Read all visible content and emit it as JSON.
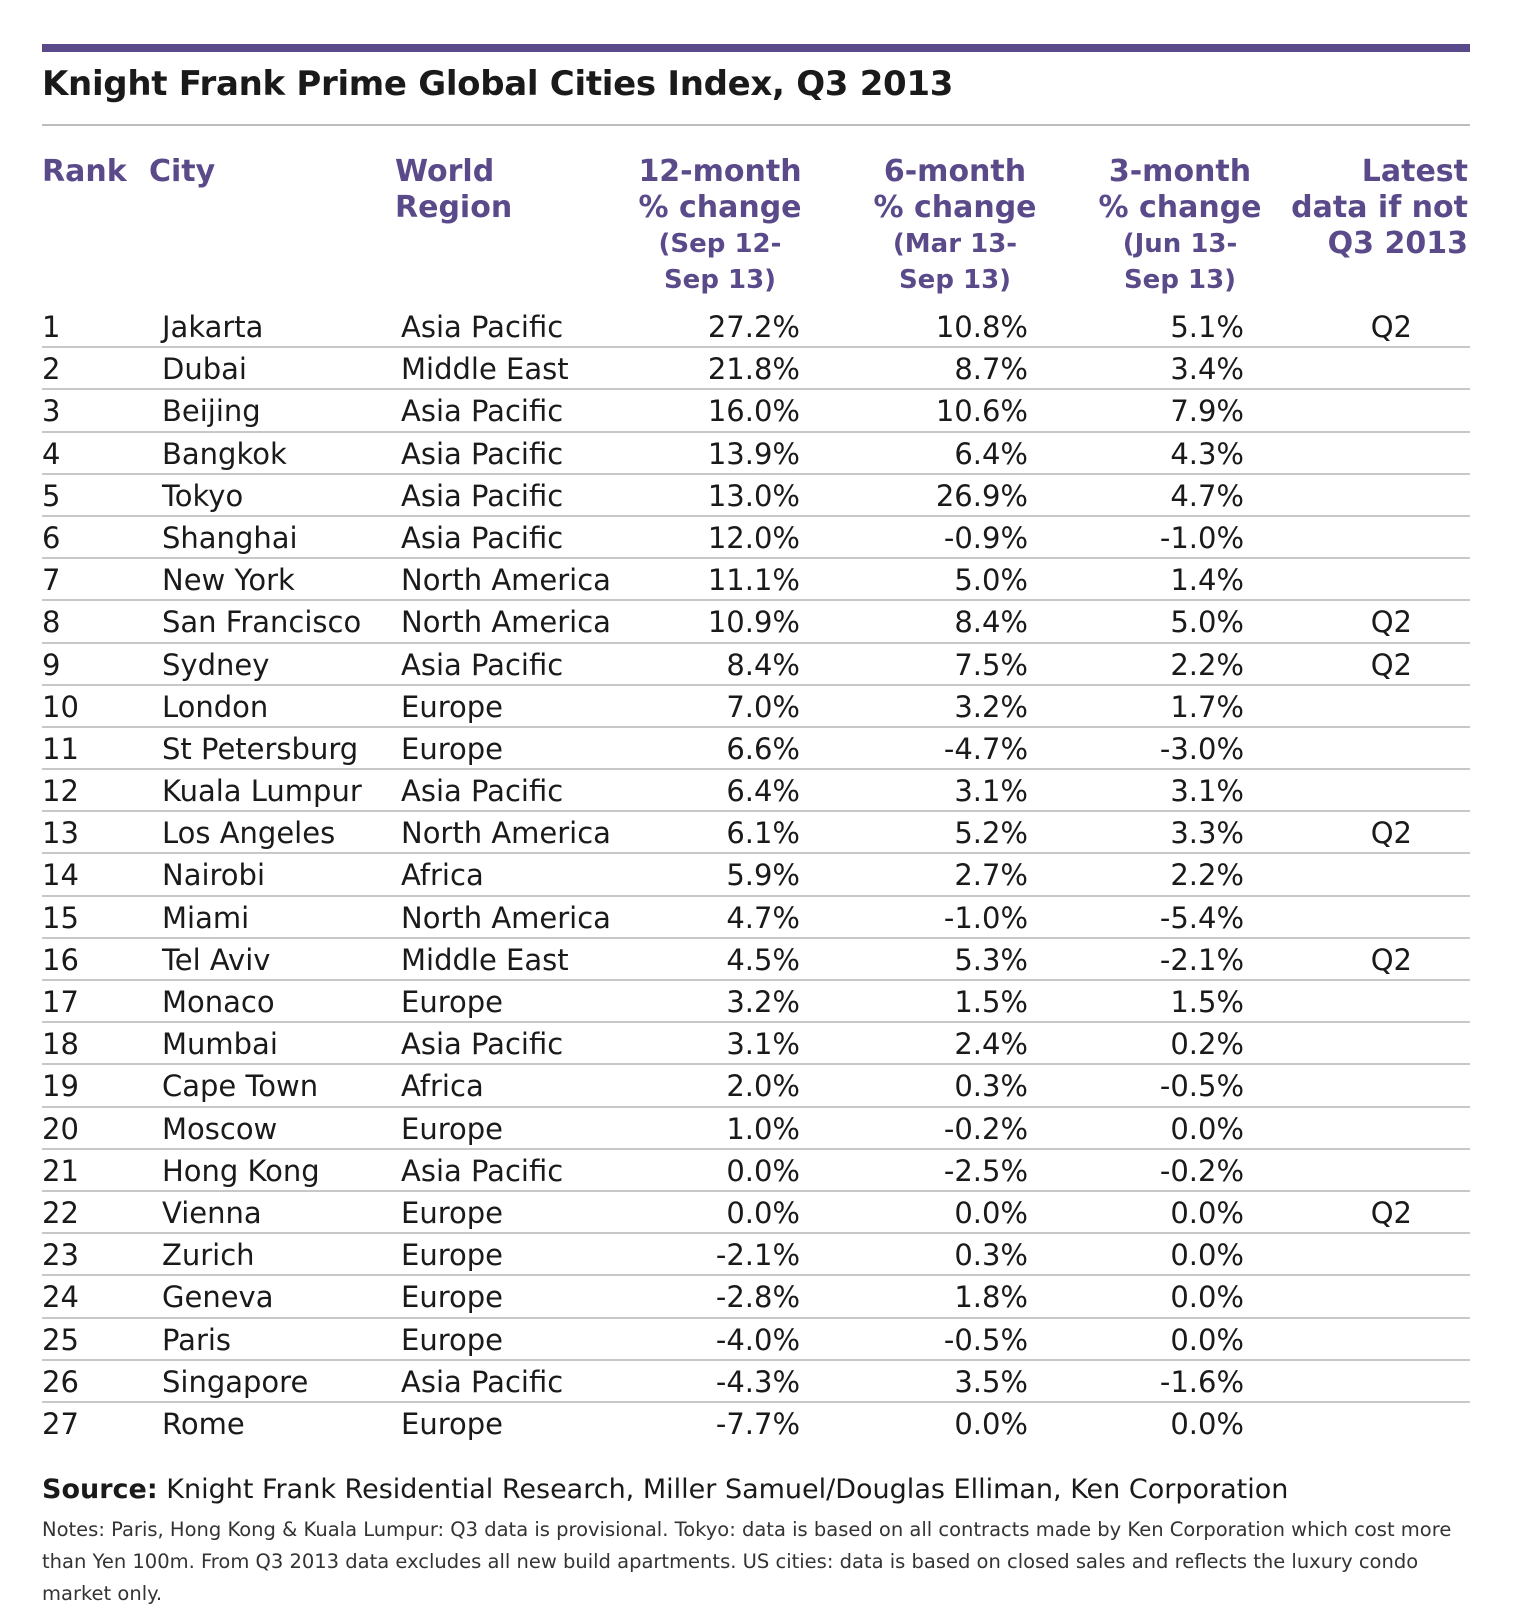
{
  "title": "Knight Frank Prime Global Cities Index, Q3 2013",
  "accent_color": "#5b4a8a",
  "headers": {
    "rank": "Rank",
    "city": "City",
    "region_line1": "World",
    "region_line2": "Region",
    "c12_line1": "12-month",
    "c12_line2": "% change",
    "c12_line3": "(Sep 12-",
    "c12_line4": "Sep 13)",
    "c6_line1": "6-month",
    "c6_line2": "% change",
    "c6_line3": "(Mar 13-",
    "c6_line4": "Sep 13)",
    "c3_line1": "3-month",
    "c3_line2": "% change",
    "c3_line3": "(Jun 13-",
    "c3_line4": "Sep 13)",
    "latest_line1": "Latest",
    "latest_line2": "data if not",
    "latest_line3": "Q3 2013"
  },
  "rows": [
    {
      "rank": "1",
      "city": "Jakarta",
      "region": "Asia Pacific",
      "c12": "27.2%",
      "c6": "10.8%",
      "c3": "5.1%",
      "latest": "Q2"
    },
    {
      "rank": "2",
      "city": "Dubai",
      "region": "Middle East",
      "c12": "21.8%",
      "c6": "8.7%",
      "c3": "3.4%",
      "latest": ""
    },
    {
      "rank": "3",
      "city": "Beijing",
      "region": "Asia Pacific",
      "c12": "16.0%",
      "c6": "10.6%",
      "c3": "7.9%",
      "latest": ""
    },
    {
      "rank": "4",
      "city": "Bangkok",
      "region": "Asia Pacific",
      "c12": "13.9%",
      "c6": "6.4%",
      "c3": "4.3%",
      "latest": ""
    },
    {
      "rank": "5",
      "city": "Tokyo",
      "region": "Asia Pacific",
      "c12": "13.0%",
      "c6": "26.9%",
      "c3": "4.7%",
      "latest": ""
    },
    {
      "rank": "6",
      "city": "Shanghai",
      "region": "Asia Pacific",
      "c12": "12.0%",
      "c6": "-0.9%",
      "c3": "-1.0%",
      "latest": ""
    },
    {
      "rank": "7",
      "city": "New York",
      "region": "North America",
      "c12": "11.1%",
      "c6": "5.0%",
      "c3": "1.4%",
      "latest": ""
    },
    {
      "rank": "8",
      "city": "San Francisco",
      "region": "North America",
      "c12": "10.9%",
      "c6": "8.4%",
      "c3": "5.0%",
      "latest": "Q2"
    },
    {
      "rank": "9",
      "city": "Sydney",
      "region": "Asia Pacific",
      "c12": "8.4%",
      "c6": "7.5%",
      "c3": "2.2%",
      "latest": "Q2"
    },
    {
      "rank": "10",
      "city": "London",
      "region": "Europe",
      "c12": "7.0%",
      "c6": "3.2%",
      "c3": "1.7%",
      "latest": ""
    },
    {
      "rank": "11",
      "city": "St Petersburg",
      "region": "Europe",
      "c12": "6.6%",
      "c6": "-4.7%",
      "c3": "-3.0%",
      "latest": ""
    },
    {
      "rank": "12",
      "city": "Kuala Lumpur",
      "region": "Asia Pacific",
      "c12": "6.4%",
      "c6": "3.1%",
      "c3": "3.1%",
      "latest": ""
    },
    {
      "rank": "13",
      "city": "Los Angeles",
      "region": "North America",
      "c12": "6.1%",
      "c6": "5.2%",
      "c3": "3.3%",
      "latest": "Q2"
    },
    {
      "rank": "14",
      "city": "Nairobi",
      "region": "Africa",
      "c12": "5.9%",
      "c6": "2.7%",
      "c3": "2.2%",
      "latest": ""
    },
    {
      "rank": "15",
      "city": "Miami",
      "region": "North America",
      "c12": "4.7%",
      "c6": "-1.0%",
      "c3": "-5.4%",
      "latest": ""
    },
    {
      "rank": "16",
      "city": "Tel Aviv",
      "region": "Middle East",
      "c12": "4.5%",
      "c6": "5.3%",
      "c3": "-2.1%",
      "latest": "Q2"
    },
    {
      "rank": "17",
      "city": "Monaco",
      "region": "Europe",
      "c12": "3.2%",
      "c6": "1.5%",
      "c3": "1.5%",
      "latest": ""
    },
    {
      "rank": "18",
      "city": "Mumbai",
      "region": "Asia Pacific",
      "c12": "3.1%",
      "c6": "2.4%",
      "c3": "0.2%",
      "latest": ""
    },
    {
      "rank": "19",
      "city": "Cape Town",
      "region": "Africa",
      "c12": "2.0%",
      "c6": "0.3%",
      "c3": "-0.5%",
      "latest": ""
    },
    {
      "rank": "20",
      "city": "Moscow",
      "region": "Europe",
      "c12": "1.0%",
      "c6": "-0.2%",
      "c3": "0.0%",
      "latest": ""
    },
    {
      "rank": "21",
      "city": "Hong Kong",
      "region": "Asia Pacific",
      "c12": "0.0%",
      "c6": "-2.5%",
      "c3": "-0.2%",
      "latest": ""
    },
    {
      "rank": "22",
      "city": "Vienna",
      "region": "Europe",
      "c12": "0.0%",
      "c6": "0.0%",
      "c3": "0.0%",
      "latest": "Q2"
    },
    {
      "rank": "23",
      "city": "Zurich",
      "region": "Europe",
      "c12": "-2.1%",
      "c6": "0.3%",
      "c3": "0.0%",
      "latest": ""
    },
    {
      "rank": "24",
      "city": "Geneva",
      "region": "Europe",
      "c12": "-2.8%",
      "c6": "1.8%",
      "c3": "0.0%",
      "latest": ""
    },
    {
      "rank": "25",
      "city": "Paris",
      "region": "Europe",
      "c12": "-4.0%",
      "c6": "-0.5%",
      "c3": "0.0%",
      "latest": ""
    },
    {
      "rank": "26",
      "city": "Singapore",
      "region": "Asia Pacific",
      "c12": "-4.3%",
      "c6": "3.5%",
      "c3": "-1.6%",
      "latest": ""
    },
    {
      "rank": "27",
      "city": "Rome",
      "region": "Europe",
      "c12": "-7.7%",
      "c6": "0.0%",
      "c3": "0.0%",
      "latest": ""
    }
  ],
  "source_label": "Source:",
  "source_text": "Knight Frank Residential Research, Miller Samuel/Douglas Elliman, Ken Corporation",
  "notes": "Notes: Paris, Hong Kong & Kuala Lumpur: Q3 data is provisional. Tokyo: data is based on all contracts made by Ken Corporation which cost more than Yen 100m. From Q3 2013 data excludes all new build apartments. US cities: data is based on closed sales and reflects the luxury condo market only."
}
